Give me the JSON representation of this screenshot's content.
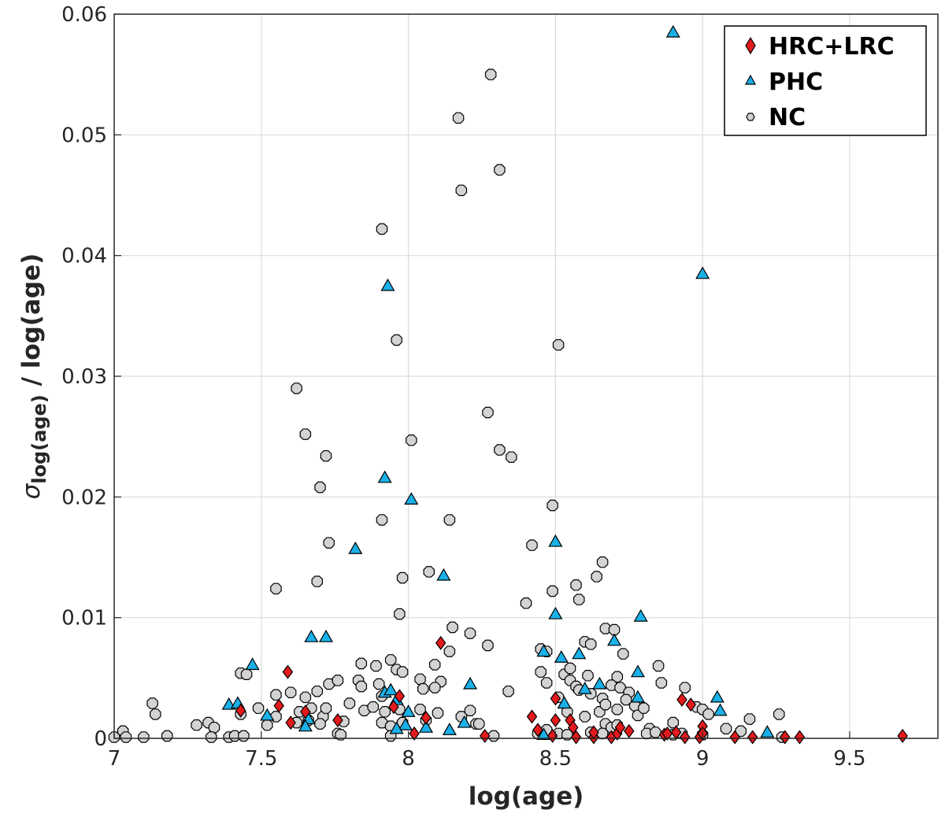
{
  "chart_data": {
    "type": "scatter",
    "title": "",
    "xlabel": "log(age)",
    "ylabel_symbol": "σ",
    "ylabel_subscript": "log(age)",
    "ylabel_suffix": " / log(age)",
    "xlim": [
      7,
      9.8
    ],
    "ylim": [
      0,
      0.06
    ],
    "xticks": [
      7,
      7.5,
      8,
      8.5,
      9,
      9.5
    ],
    "xtick_labels": [
      "7",
      "7.5",
      "8",
      "8.5",
      "9",
      "9.5"
    ],
    "yticks": [
      0,
      0.01,
      0.02,
      0.03,
      0.04,
      0.05,
      0.06
    ],
    "ytick_labels": [
      "0",
      "0.01",
      "0.02",
      "0.03",
      "0.04",
      "0.05",
      "0.06"
    ],
    "grid": true,
    "legend_position": "top-right",
    "series": [
      {
        "name": "HRC+LRC",
        "marker": "diamond",
        "color": "#e31a1c",
        "points": [
          [
            7.43,
            0.0023
          ],
          [
            7.56,
            0.0027
          ],
          [
            7.59,
            0.0055
          ],
          [
            7.6,
            0.0013
          ],
          [
            7.65,
            0.0022
          ],
          [
            7.76,
            0.0015
          ],
          [
            7.95,
            0.0026
          ],
          [
            7.97,
            0.0035
          ],
          [
            8.02,
            0.0004
          ],
          [
            8.06,
            0.0017
          ],
          [
            8.11,
            0.0079
          ],
          [
            8.26,
            0.0002
          ],
          [
            8.42,
            0.0018
          ],
          [
            8.44,
            0.0007
          ],
          [
            8.49,
            0.0002
          ],
          [
            8.5,
            0.0015
          ],
          [
            8.5,
            0.0033
          ],
          [
            8.55,
            0.0015
          ],
          [
            8.56,
            0.0009
          ],
          [
            8.57,
            0.0001
          ],
          [
            8.63,
            0.0001
          ],
          [
            8.63,
            0.0005
          ],
          [
            8.69,
            0.0001
          ],
          [
            8.71,
            0.0004
          ],
          [
            8.72,
            0.0009
          ],
          [
            8.75,
            0.0006
          ],
          [
            8.87,
            0.0003
          ],
          [
            8.88,
            0.0004
          ],
          [
            8.91,
            0.0005
          ],
          [
            8.93,
            0.0032
          ],
          [
            8.94,
            0.0001
          ],
          [
            8.96,
            0.0028
          ],
          [
            8.99,
            0.0001
          ],
          [
            9.0,
            0.001
          ],
          [
            9.0,
            0.0004
          ],
          [
            9.11,
            0.0001
          ],
          [
            9.17,
            0.0001
          ],
          [
            9.28,
            0.0001
          ],
          [
            9.33,
            0.0001
          ],
          [
            9.68,
            0.0002
          ]
        ]
      },
      {
        "name": "PHC",
        "marker": "triangle",
        "color": "#1ab0e8",
        "points": [
          [
            8.9,
            0.0585
          ],
          [
            9.0,
            0.0385
          ],
          [
            7.93,
            0.0375
          ],
          [
            7.92,
            0.0216
          ],
          [
            8.01,
            0.0198
          ],
          [
            7.82,
            0.0157
          ],
          [
            8.12,
            0.0135
          ],
          [
            8.5,
            0.0163
          ],
          [
            8.5,
            0.0103
          ],
          [
            8.79,
            0.0101
          ],
          [
            7.67,
            0.0084
          ],
          [
            7.72,
            0.0084
          ],
          [
            7.47,
            0.0061
          ],
          [
            8.46,
            0.0072
          ],
          [
            8.52,
            0.0067
          ],
          [
            8.58,
            0.007
          ],
          [
            8.7,
            0.0081
          ],
          [
            8.78,
            0.0055
          ],
          [
            8.21,
            0.0045
          ],
          [
            8.65,
            0.0045
          ],
          [
            8.6,
            0.0041
          ],
          [
            7.92,
            0.0038
          ],
          [
            7.94,
            0.004
          ],
          [
            7.96,
            0.0032
          ],
          [
            8.53,
            0.0029
          ],
          [
            8.78,
            0.0034
          ],
          [
            9.05,
            0.0034
          ],
          [
            7.39,
            0.0028
          ],
          [
            7.42,
            0.0029
          ],
          [
            7.52,
            0.0019
          ],
          [
            7.66,
            0.0016
          ],
          [
            7.65,
            0.001
          ],
          [
            8.0,
            0.0022
          ],
          [
            7.99,
            0.0011
          ],
          [
            7.96,
            0.0008
          ],
          [
            8.06,
            0.0009
          ],
          [
            8.14,
            0.0007
          ],
          [
            8.19,
            0.0013
          ],
          [
            8.46,
            0.0003
          ],
          [
            9.06,
            0.0023
          ],
          [
            9.22,
            0.0005
          ]
        ]
      },
      {
        "name": "NC",
        "marker": "circle",
        "color": "#d3d3d3",
        "points": [
          [
            8.28,
            0.055
          ],
          [
            8.17,
            0.0514
          ],
          [
            8.31,
            0.0471
          ],
          [
            8.18,
            0.0454
          ],
          [
            7.91,
            0.0422
          ],
          [
            7.96,
            0.033
          ],
          [
            8.51,
            0.0326
          ],
          [
            7.62,
            0.029
          ],
          [
            8.27,
            0.027
          ],
          [
            7.65,
            0.0252
          ],
          [
            8.01,
            0.0247
          ],
          [
            8.31,
            0.0239
          ],
          [
            8.35,
            0.0233
          ],
          [
            7.72,
            0.0234
          ],
          [
            7.7,
            0.0208
          ],
          [
            8.49,
            0.0193
          ],
          [
            7.91,
            0.0181
          ],
          [
            8.14,
            0.0181
          ],
          [
            7.73,
            0.0162
          ],
          [
            8.42,
            0.016
          ],
          [
            8.66,
            0.0146
          ],
          [
            8.07,
            0.0138
          ],
          [
            7.98,
            0.0133
          ],
          [
            8.64,
            0.0134
          ],
          [
            7.69,
            0.013
          ],
          [
            8.57,
            0.0127
          ],
          [
            7.55,
            0.0124
          ],
          [
            8.49,
            0.0122
          ],
          [
            8.58,
            0.0115
          ],
          [
            8.4,
            0.0112
          ],
          [
            7.97,
            0.0103
          ],
          [
            8.15,
            0.0092
          ],
          [
            8.21,
            0.0087
          ],
          [
            8.67,
            0.0091
          ],
          [
            8.7,
            0.009
          ],
          [
            8.27,
            0.0077
          ],
          [
            8.45,
            0.0074
          ],
          [
            8.47,
            0.0072
          ],
          [
            8.6,
            0.008
          ],
          [
            8.62,
            0.0078
          ],
          [
            8.73,
            0.007
          ],
          [
            8.14,
            0.0072
          ],
          [
            8.09,
            0.0061
          ],
          [
            7.94,
            0.0065
          ],
          [
            7.84,
            0.0062
          ],
          [
            7.89,
            0.006
          ],
          [
            8.45,
            0.0055
          ],
          [
            8.53,
            0.0053
          ],
          [
            8.55,
            0.0058
          ],
          [
            8.61,
            0.0052
          ],
          [
            8.71,
            0.0051
          ],
          [
            8.85,
            0.006
          ],
          [
            8.86,
            0.0046
          ],
          [
            8.94,
            0.0042
          ],
          [
            7.43,
            0.0054
          ],
          [
            7.45,
            0.0053
          ],
          [
            7.96,
            0.0057
          ],
          [
            7.98,
            0.0055
          ],
          [
            8.04,
            0.0049
          ],
          [
            8.11,
            0.0047
          ],
          [
            8.47,
            0.0046
          ],
          [
            8.55,
            0.0048
          ],
          [
            8.57,
            0.0043
          ],
          [
            8.69,
            0.0044
          ],
          [
            8.72,
            0.0042
          ],
          [
            7.55,
            0.0036
          ],
          [
            7.6,
            0.0038
          ],
          [
            7.65,
            0.0034
          ],
          [
            7.69,
            0.0039
          ],
          [
            7.73,
            0.0045
          ],
          [
            7.76,
            0.0048
          ],
          [
            7.83,
            0.0048
          ],
          [
            7.84,
            0.0043
          ],
          [
            7.9,
            0.0045
          ],
          [
            7.91,
            0.0035
          ],
          [
            8.05,
            0.0041
          ],
          [
            8.09,
            0.0042
          ],
          [
            8.34,
            0.0039
          ],
          [
            8.51,
            0.0034
          ],
          [
            8.58,
            0.004
          ],
          [
            8.62,
            0.0037
          ],
          [
            8.66,
            0.0033
          ],
          [
            8.75,
            0.0038
          ],
          [
            8.77,
            0.0027
          ],
          [
            8.98,
            0.0026
          ],
          [
            9.0,
            0.0024
          ],
          [
            9.02,
            0.002
          ],
          [
            7.13,
            0.0029
          ],
          [
            7.14,
            0.002
          ],
          [
            7.43,
            0.002
          ],
          [
            7.49,
            0.0025
          ],
          [
            7.55,
            0.0018
          ],
          [
            7.63,
            0.0022
          ],
          [
            7.67,
            0.0025
          ],
          [
            7.71,
            0.0018
          ],
          [
            7.72,
            0.0025
          ],
          [
            7.8,
            0.0029
          ],
          [
            7.85,
            0.0023
          ],
          [
            7.88,
            0.0026
          ],
          [
            7.92,
            0.0022
          ],
          [
            7.97,
            0.0024
          ],
          [
            8.04,
            0.0024
          ],
          [
            8.1,
            0.0021
          ],
          [
            8.18,
            0.0018
          ],
          [
            8.21,
            0.0023
          ],
          [
            8.23,
            0.0012
          ],
          [
            8.54,
            0.0022
          ],
          [
            8.6,
            0.0018
          ],
          [
            8.65,
            0.0022
          ],
          [
            8.67,
            0.0028
          ],
          [
            8.71,
            0.0024
          ],
          [
            8.74,
            0.0032
          ],
          [
            8.78,
            0.0019
          ],
          [
            8.8,
            0.0025
          ],
          [
            9.26,
            0.002
          ],
          [
            9.16,
            0.0016
          ],
          [
            9.13,
            0.0006
          ],
          [
            9.08,
            0.0008
          ],
          [
            7.28,
            0.0011
          ],
          [
            7.32,
            0.0013
          ],
          [
            7.34,
            0.0009
          ],
          [
            7.52,
            0.0011
          ],
          [
            7.62,
            0.0013
          ],
          [
            7.66,
            0.0015
          ],
          [
            7.7,
            0.0012
          ],
          [
            7.78,
            0.0014
          ],
          [
            7.91,
            0.0013
          ],
          [
            7.94,
            0.001
          ],
          [
            7.98,
            0.0013
          ],
          [
            8.06,
            0.0015
          ],
          [
            8.24,
            0.0012
          ],
          [
            8.47,
            0.0007
          ],
          [
            8.67,
            0.0012
          ],
          [
            8.69,
            0.0009
          ],
          [
            8.71,
            0.0011
          ],
          [
            8.82,
            0.0008
          ],
          [
            8.9,
            0.0013
          ],
          [
            7.0,
            0.0001
          ],
          [
            7.03,
            0.0006
          ],
          [
            7.04,
            0.0001
          ],
          [
            7.1,
            0.0001
          ],
          [
            7.18,
            0.0002
          ],
          [
            7.33,
            0.0001
          ],
          [
            7.39,
            0.0001
          ],
          [
            7.41,
            0.0002
          ],
          [
            7.44,
            0.0002
          ],
          [
            7.76,
            0.0004
          ],
          [
            7.77,
            0.0003
          ],
          [
            7.94,
            0.0002
          ],
          [
            8.29,
            0.0002
          ],
          [
            8.44,
            0.0004
          ],
          [
            8.51,
            0.0004
          ],
          [
            8.54,
            0.0003
          ],
          [
            8.62,
            0.0005
          ],
          [
            8.66,
            0.0004
          ],
          [
            8.81,
            0.0004
          ],
          [
            8.84,
            0.0005
          ],
          [
            8.9,
            0.0003
          ],
          [
            8.93,
            0.0004
          ],
          [
            9.0,
            0.0003
          ],
          [
            9.27,
            0.0001
          ]
        ]
      }
    ]
  }
}
